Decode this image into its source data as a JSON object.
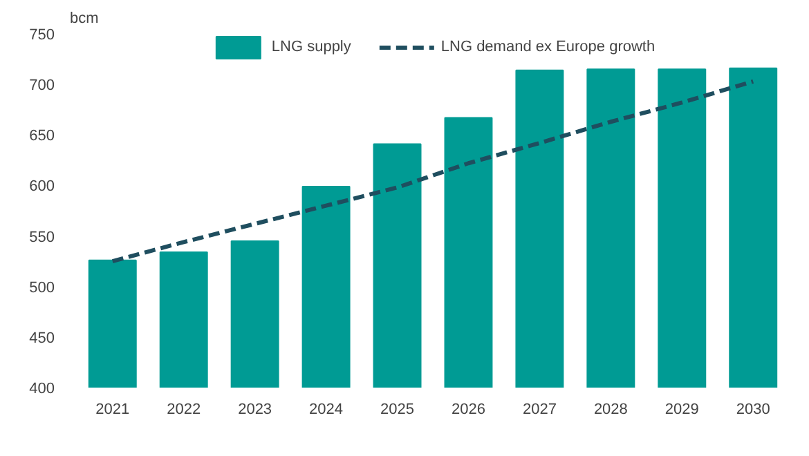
{
  "chart_data": {
    "type": "bar",
    "ylabel": "bcm",
    "categories": [
      "2021",
      "2022",
      "2023",
      "2024",
      "2025",
      "2026",
      "2027",
      "2028",
      "2029",
      "2030"
    ],
    "series": [
      {
        "name": "LNG supply",
        "color": "#009b94",
        "values": [
          526,
          534,
          545,
          599,
          641,
          667,
          714,
          715,
          715,
          716
        ]
      },
      {
        "name": "LNG demand ex Europe growth",
        "type": "line",
        "line_style": "dashed",
        "color": "#1f4e5f",
        "values": [
          525,
          544,
          562,
          580,
          598,
          622,
          642,
          663,
          682,
          703
        ]
      }
    ],
    "ylim": [
      400,
      750
    ],
    "yticks": [
      400,
      450,
      500,
      550,
      600,
      650,
      700,
      750
    ],
    "grid": false,
    "legend": "top"
  }
}
